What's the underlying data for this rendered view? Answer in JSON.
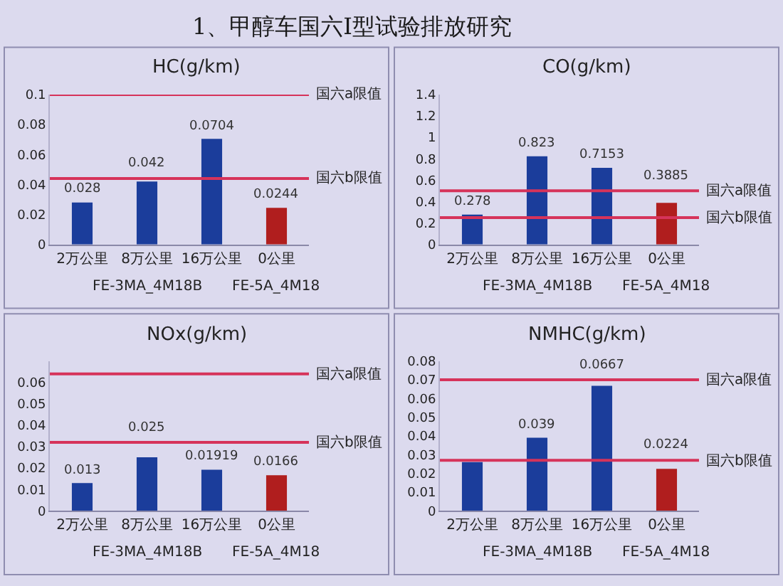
{
  "chart_data": [
    {
      "type": "other",
      "title": "1、甲醇车国六Ⅰ型试验排放研究"
    },
    {
      "type": "bar",
      "title": "HC(g/km)",
      "categories": [
        "2万公里",
        "8万公里",
        "16万公里",
        "0公里"
      ],
      "values": [
        0.028,
        0.042,
        0.0704,
        0.0244
      ],
      "colors": [
        "#1b3d9b",
        "#1b3d9b",
        "#1b3d9b",
        "#b01e1e"
      ],
      "value_labels": [
        "0.028",
        "0.042",
        "0.0704",
        "0.0244"
      ],
      "ylim": [
        0,
        0.1
      ],
      "yticks": [
        0,
        0.02,
        0.04,
        0.06,
        0.08,
        0.1
      ],
      "ref_lines": [
        {
          "axis": "y",
          "value": 0.1,
          "label": "国六a限值",
          "color": "#d6335a"
        },
        {
          "axis": "y",
          "value": 0.044,
          "label": "国六b限值",
          "color": "#d6335a"
        }
      ],
      "annotations": [
        "FE-3MA_4M18B",
        "FE-5A_4M18"
      ]
    },
    {
      "type": "bar",
      "title": "CO(g/km)",
      "categories": [
        "2万公里",
        "8万公里",
        "16万公里",
        "0公里"
      ],
      "values": [
        0.278,
        0.823,
        0.7153,
        0.3885
      ],
      "colors": [
        "#1b3d9b",
        "#1b3d9b",
        "#1b3d9b",
        "#b01e1e"
      ],
      "value_labels": [
        "0.278",
        "0.823",
        "0.7153",
        "0.3885"
      ],
      "ylim": [
        0,
        1.4
      ],
      "yticks": [
        0,
        0.2,
        0.4,
        0.6,
        0.8,
        1,
        1.2,
        1.4
      ],
      "ref_lines": [
        {
          "axis": "y",
          "value": 0.5,
          "label": "国六a限值",
          "color": "#d6335a"
        },
        {
          "axis": "y",
          "value": 0.25,
          "label": "国六b限值",
          "color": "#d6335a"
        }
      ],
      "annotations": [
        "FE-3MA_4M18B",
        "FE-5A_4M18"
      ]
    },
    {
      "type": "bar",
      "title": "NOx(g/km)",
      "categories": [
        "2万公里",
        "8万公里",
        "16万公里",
        "0公里"
      ],
      "values": [
        0.013,
        0.025,
        0.01919,
        0.0166
      ],
      "colors": [
        "#1b3d9b",
        "#1b3d9b",
        "#1b3d9b",
        "#b01e1e"
      ],
      "value_labels": [
        "0.013",
        "0.025",
        "0.01919",
        "0.0166"
      ],
      "ylim": [
        0,
        0.07
      ],
      "yticks": [
        0,
        0.01,
        0.02,
        0.03,
        0.04,
        0.05,
        0.06
      ],
      "ref_lines": [
        {
          "axis": "y",
          "value": 0.064,
          "label": "国六a限值",
          "color": "#d6335a"
        },
        {
          "axis": "y",
          "value": 0.032,
          "label": "国六b限值",
          "color": "#d6335a"
        }
      ],
      "annotations": [
        "FE-3MA_4M18B",
        "FE-5A_4M18"
      ]
    },
    {
      "type": "bar",
      "title": "NMHC(g/km)",
      "categories": [
        "2万公里",
        "8万公里",
        "16万公里",
        "0公里"
      ],
      "values": [
        0.026,
        0.039,
        0.0667,
        0.0224
      ],
      "colors": [
        "#1b3d9b",
        "#1b3d9b",
        "#1b3d9b",
        "#b01e1e"
      ],
      "value_labels": [
        null,
        "0.039",
        "0.0667",
        "0.0224"
      ],
      "ylim": [
        0,
        0.08
      ],
      "yticks": [
        0,
        0.01,
        0.02,
        0.03,
        0.04,
        0.05,
        0.06,
        0.07,
        0.08
      ],
      "ref_lines": [
        {
          "axis": "y",
          "value": 0.07,
          "label": "国六a限值",
          "color": "#d6335a"
        },
        {
          "axis": "y",
          "value": 0.027,
          "label": "国六b限值",
          "color": "#d6335a"
        }
      ],
      "annotations": [
        "FE-3MA_4M18B",
        "FE-5A_4M18"
      ]
    }
  ]
}
